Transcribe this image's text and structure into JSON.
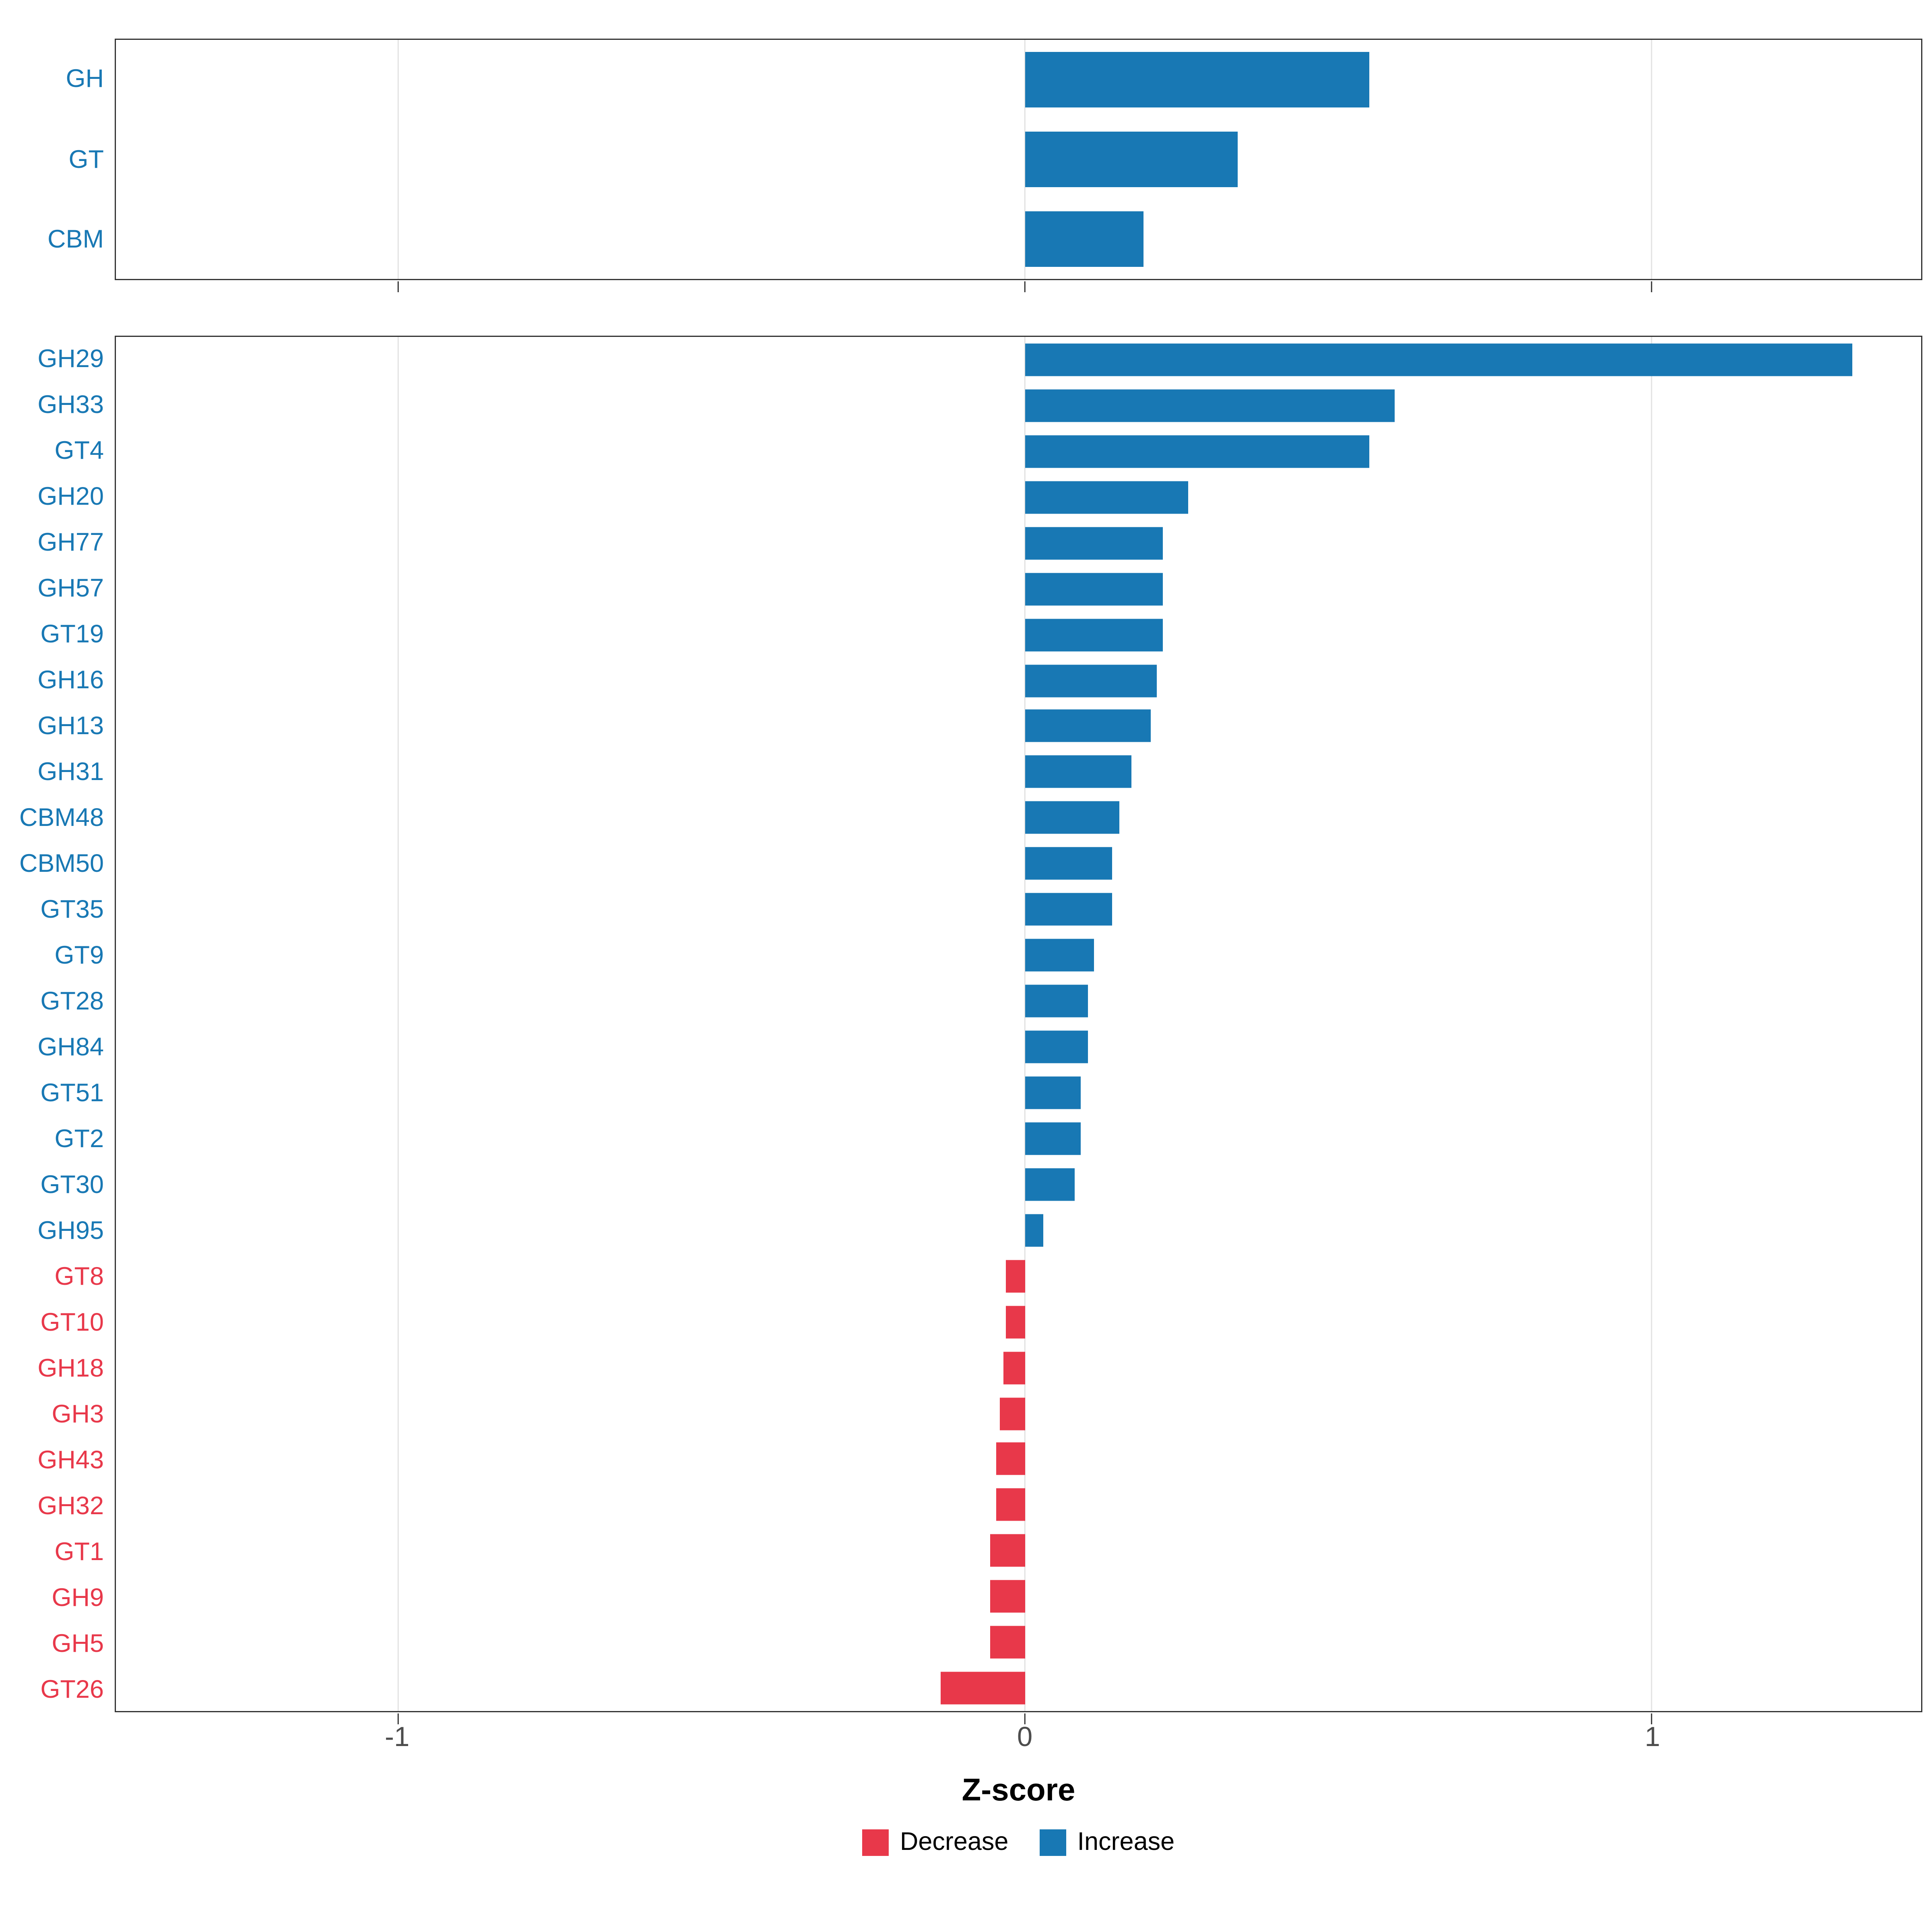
{
  "chart_data": {
    "type": "bar",
    "orientation": "horizontal",
    "axis": {
      "xlabel": "Z-score",
      "ticks": [
        -1,
        0,
        1
      ],
      "tick_labels": [
        "-1",
        "0",
        "1"
      ],
      "xlim": [
        -1.45,
        1.43
      ],
      "grid": "major-vertical"
    },
    "colors": {
      "increase": "#1878b4",
      "decrease": "#e8384a"
    },
    "panels": [
      {
        "id": "family-summary",
        "rows": [
          {
            "label": "GH",
            "value": 0.55,
            "direction": "increase"
          },
          {
            "label": "GT",
            "value": 0.34,
            "direction": "increase"
          },
          {
            "label": "CBM",
            "value": 0.19,
            "direction": "increase"
          }
        ]
      },
      {
        "id": "cazyme-families",
        "rows": [
          {
            "label": "GH29",
            "value": 1.32,
            "direction": "increase"
          },
          {
            "label": "GH33",
            "value": 0.59,
            "direction": "increase"
          },
          {
            "label": "GT4",
            "value": 0.55,
            "direction": "increase"
          },
          {
            "label": "GH20",
            "value": 0.26,
            "direction": "increase"
          },
          {
            "label": "GH77",
            "value": 0.22,
            "direction": "increase"
          },
          {
            "label": "GH57",
            "value": 0.22,
            "direction": "increase"
          },
          {
            "label": "GT19",
            "value": 0.22,
            "direction": "increase"
          },
          {
            "label": "GH16",
            "value": 0.21,
            "direction": "increase"
          },
          {
            "label": "GH13",
            "value": 0.2,
            "direction": "increase"
          },
          {
            "label": "GH31",
            "value": 0.17,
            "direction": "increase"
          },
          {
            "label": "CBM48",
            "value": 0.15,
            "direction": "increase"
          },
          {
            "label": "CBM50",
            "value": 0.14,
            "direction": "increase"
          },
          {
            "label": "GT35",
            "value": 0.14,
            "direction": "increase"
          },
          {
            "label": "GT9",
            "value": 0.11,
            "direction": "increase"
          },
          {
            "label": "GT28",
            "value": 0.1,
            "direction": "increase"
          },
          {
            "label": "GH84",
            "value": 0.1,
            "direction": "increase"
          },
          {
            "label": "GT51",
            "value": 0.09,
            "direction": "increase"
          },
          {
            "label": "GT2",
            "value": 0.09,
            "direction": "increase"
          },
          {
            "label": "GT30",
            "value": 0.08,
            "direction": "increase"
          },
          {
            "label": "GH95",
            "value": 0.03,
            "direction": "increase"
          },
          {
            "label": "GT8",
            "value": -0.03,
            "direction": "decrease"
          },
          {
            "label": "GT10",
            "value": -0.03,
            "direction": "decrease"
          },
          {
            "label": "GH18",
            "value": -0.035,
            "direction": "decrease"
          },
          {
            "label": "GH3",
            "value": -0.04,
            "direction": "decrease"
          },
          {
            "label": "GH43",
            "value": -0.045,
            "direction": "decrease"
          },
          {
            "label": "GH32",
            "value": -0.045,
            "direction": "decrease"
          },
          {
            "label": "GT1",
            "value": -0.055,
            "direction": "decrease"
          },
          {
            "label": "GH9",
            "value": -0.055,
            "direction": "decrease"
          },
          {
            "label": "GH5",
            "value": -0.055,
            "direction": "decrease"
          },
          {
            "label": "GT26",
            "value": -0.135,
            "direction": "decrease"
          }
        ]
      }
    ],
    "legend": {
      "position": "bottom",
      "items": [
        {
          "label": "Decrease",
          "direction": "decrease"
        },
        {
          "label": "Increase",
          "direction": "increase"
        }
      ]
    }
  }
}
